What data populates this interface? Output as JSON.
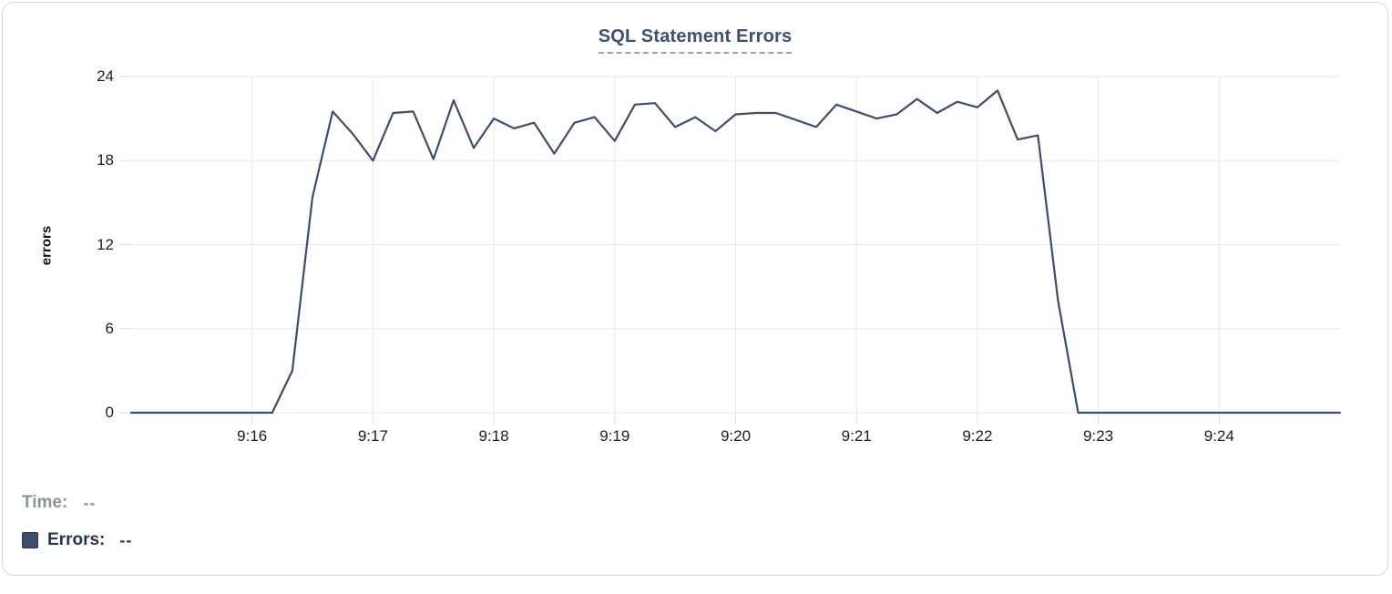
{
  "chart": {
    "title": "SQL Statement Errors",
    "ylabel": "errors"
  },
  "tooltip": {
    "time_label": "Time:",
    "time_value": "--",
    "errors_label": "Errors:",
    "errors_value": "--"
  },
  "colors": {
    "line": "#3e4d6c",
    "grid": "#e8e8e8",
    "tick_mark": "#dedede",
    "axis_text": "#1d1d1f",
    "title_text": "#3c5174",
    "legend_muted": "#8e9299",
    "legend_errors": "#273459",
    "card_border": "#d8d8d8"
  },
  "chart_data": {
    "type": "line",
    "title": "SQL Statement Errors",
    "xlabel": "",
    "ylabel": "errors",
    "ylim": [
      0,
      24
    ],
    "grid": true,
    "legend_position": "bottom-left",
    "x_start": "9:15:00",
    "x_end": "9:25:00",
    "interval_seconds": 10,
    "x_ticks": [
      {
        "label": "9:16",
        "offset_s": 60
      },
      {
        "label": "9:17",
        "offset_s": 120
      },
      {
        "label": "9:18",
        "offset_s": 180
      },
      {
        "label": "9:19",
        "offset_s": 240
      },
      {
        "label": "9:20",
        "offset_s": 300
      },
      {
        "label": "9:21",
        "offset_s": 360
      },
      {
        "label": "9:22",
        "offset_s": 420
      },
      {
        "label": "9:23",
        "offset_s": 480
      },
      {
        "label": "9:24",
        "offset_s": 540
      }
    ],
    "y_ticks": [
      0,
      6,
      12,
      18,
      24
    ],
    "series": [
      {
        "name": "Errors",
        "color": "#3e4d6c",
        "values": [
          0,
          0,
          0,
          0,
          0,
          0,
          0,
          0,
          3,
          15.4,
          21.5,
          19.9,
          18,
          21.4,
          21.5,
          18.1,
          22.3,
          18.9,
          21,
          20.3,
          20.7,
          18.5,
          20.7,
          21.1,
          19.4,
          22,
          22.1,
          20.4,
          21.1,
          20.1,
          21.3,
          21.4,
          21.4,
          20.9,
          20.4,
          22,
          21.5,
          21,
          21.3,
          22.4,
          21.4,
          22.2,
          21.8,
          23,
          19.5,
          19.8,
          8,
          0,
          0,
          0,
          0,
          0,
          0,
          0,
          0,
          0,
          0,
          0,
          0,
          0,
          0
        ]
      }
    ]
  },
  "layout_meta": {
    "total_seconds": 600
  }
}
